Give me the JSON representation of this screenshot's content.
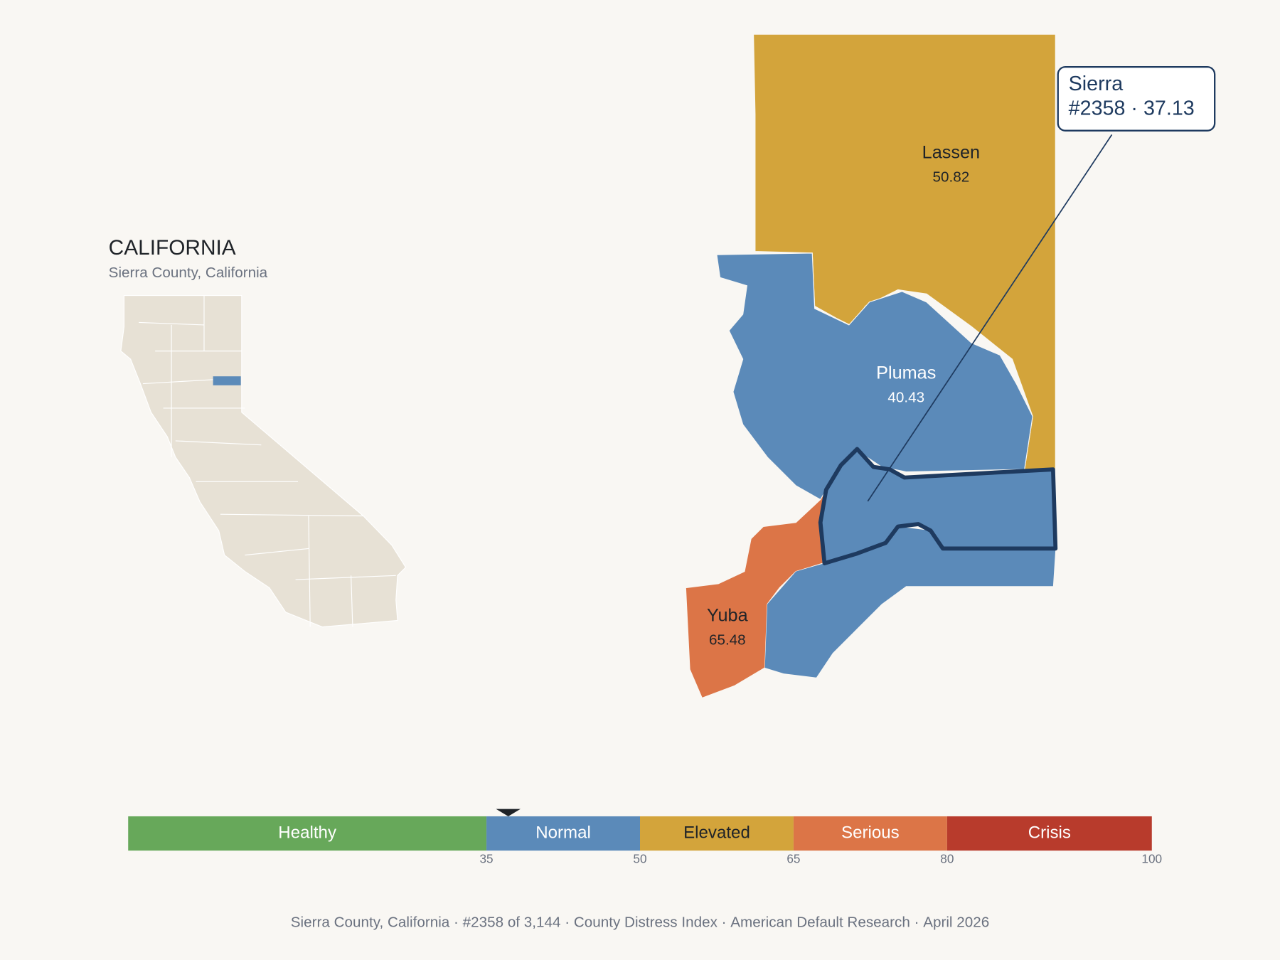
{
  "inset": {
    "title": "CALIFORNIA",
    "subtitle": "Sierra County, California"
  },
  "counties": [
    {
      "name": "Lassen",
      "value": 50.82
    },
    {
      "name": "Plumas",
      "value": 40.43
    },
    {
      "name": "Yuba",
      "value": 65.48
    }
  ],
  "callout": {
    "name": "Sierra",
    "detail": "#2358 · 37.13",
    "score": 37.13
  },
  "scale": {
    "range": [
      0,
      100
    ],
    "ticks": [
      35,
      50,
      65,
      80,
      100
    ],
    "bands": [
      {
        "label": "Healthy",
        "color": "#67a85a"
      },
      {
        "label": "Normal",
        "color": "#5b8ab9"
      },
      {
        "label": "Elevated",
        "color": "#d3a43b"
      },
      {
        "label": "Serious",
        "color": "#dc7547"
      },
      {
        "label": "Crisis",
        "color": "#b83b2c"
      }
    ]
  },
  "footer": {
    "separator": "·",
    "items": [
      "Sierra County, California",
      "#2358 of 3,144",
      "County Distress Index",
      "American Default Research",
      "April 2026"
    ]
  }
}
